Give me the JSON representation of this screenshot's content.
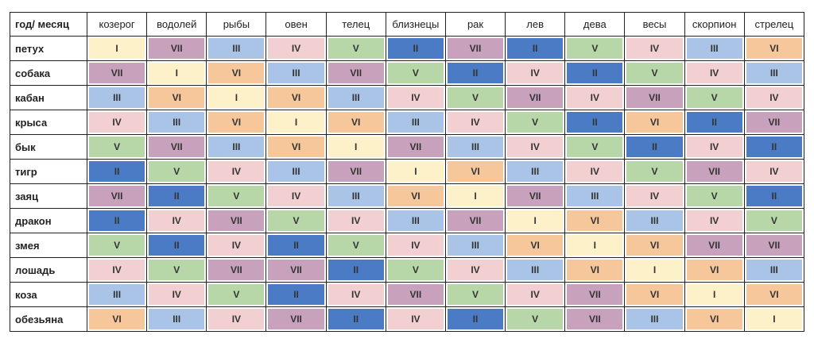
{
  "table": {
    "header": [
      "год/ месяц",
      "козерог",
      "водолей",
      "рыбы",
      "овен",
      "телец",
      "близнецы",
      "рак",
      "лев",
      "дева",
      "весы",
      "скорпион",
      "стрелец"
    ],
    "rows": [
      [
        "петух",
        "I",
        "VII",
        "III",
        "IV",
        "V",
        "II",
        "VII",
        "II",
        "V",
        "IV",
        "III",
        "VI"
      ],
      [
        "собака",
        "VII",
        "I",
        "VI",
        "III",
        "VII",
        "V",
        "II",
        "IV",
        "II",
        "V",
        "IV",
        "III"
      ],
      [
        "кабан",
        "III",
        "VI",
        "I",
        "VI",
        "III",
        "IV",
        "V",
        "VII",
        "IV",
        "VII",
        "V",
        "IV"
      ],
      [
        "крыса",
        "IV",
        "III",
        "VI",
        "I",
        "VI",
        "III",
        "IV",
        "V",
        "II",
        "VI",
        "II",
        "VII"
      ],
      [
        "бык",
        "V",
        "VII",
        "III",
        "VI",
        "I",
        "VII",
        "III",
        "IV",
        "V",
        "II",
        "IV",
        "II"
      ],
      [
        "тигр",
        "II",
        "V",
        "IV",
        "III",
        "VII",
        "I",
        "VI",
        "III",
        "IV",
        "V",
        "VII",
        "IV"
      ],
      [
        "заяц",
        "VII",
        "II",
        "V",
        "IV",
        "III",
        "VI",
        "I",
        "VII",
        "III",
        "IV",
        "V",
        "II"
      ],
      [
        "дракон",
        "II",
        "IV",
        "VII",
        "V",
        "IV",
        "III",
        "VII",
        "I",
        "VI",
        "III",
        "IV",
        "V"
      ],
      [
        "змея",
        "V",
        "II",
        "IV",
        "II",
        "V",
        "IV",
        "III",
        "VI",
        "I",
        "VI",
        "VII",
        "VII"
      ],
      [
        "лошадь",
        "IV",
        "V",
        "VII",
        "VII",
        "II",
        "V",
        "IV",
        "III",
        "VI",
        "I",
        "VI",
        "III"
      ],
      [
        "коза",
        "III",
        "IV",
        "V",
        "II",
        "IV",
        "VII",
        "V",
        "IV",
        "VII",
        "VI",
        "I",
        "VI"
      ],
      [
        "обезьяна",
        "VI",
        "III",
        "IV",
        "VII",
        "II",
        "IV",
        "II",
        "V",
        "VII",
        "III",
        "VI",
        "I"
      ]
    ],
    "palette": {
      "I": "#fdf1c9",
      "II": "#4a7bc4",
      "III": "#a9c4e6",
      "IV": "#f2cfd1",
      "V": "#b7d7a8",
      "VI": "#f5c79b",
      "VII": "#c8a2bd"
    }
  }
}
